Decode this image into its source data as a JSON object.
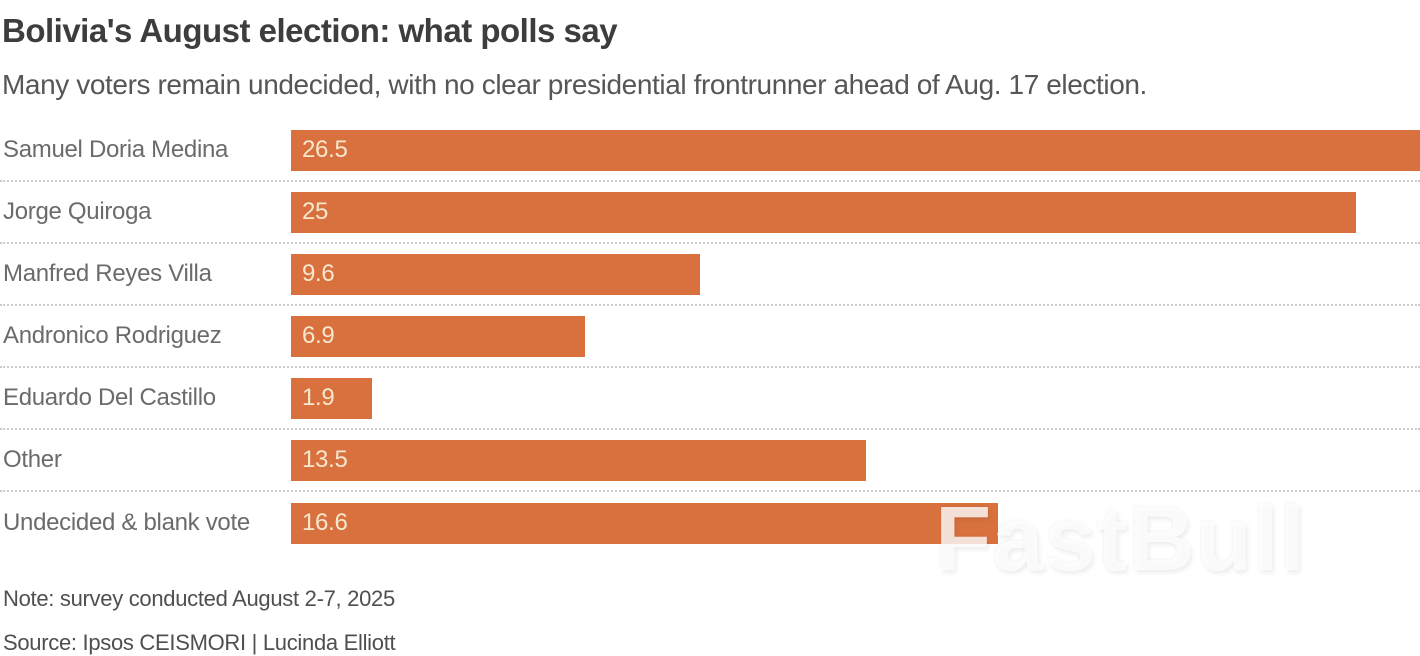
{
  "header": {
    "title": "Bolivia's August election: what polls say",
    "subtitle": "Many voters remain undecided, with no clear presidential frontrunner ahead of Aug. 17 election."
  },
  "chart_data": {
    "type": "bar",
    "orientation": "horizontal",
    "title": "Bolivia's August election: what polls say",
    "subtitle": "Many voters remain undecided, with no clear presidential frontrunner ahead of Aug. 17 election.",
    "categories": [
      "Samuel Doria Medina",
      "Jorge Quiroga",
      "Manfred Reyes Villa",
      "Andronico Rodriguez",
      "Eduardo Del Castillo",
      "Other",
      "Undecided & blank vote"
    ],
    "values": [
      26.5,
      25,
      9.6,
      6.9,
      1.9,
      13.5,
      16.6
    ],
    "xlabel": "",
    "ylabel": "",
    "xlim": [
      0,
      26.5
    ],
    "grid": "dotted-row-separators",
    "legend": "none",
    "value_labels": "inside-bar-left",
    "colors": {
      "bar": "#d9713f",
      "value_label": "#f6e7cd",
      "category_label": "#6b6b6b",
      "title": "#3d3d3d",
      "subtitle": "#565656",
      "separator": "#cccccc"
    }
  },
  "footer": {
    "note": "Note: survey conducted August 2-7, 2025",
    "source": "Source: Ipsos CEISMORI  | Lucinda Elliott"
  },
  "watermark": {
    "text": "FastBull"
  }
}
